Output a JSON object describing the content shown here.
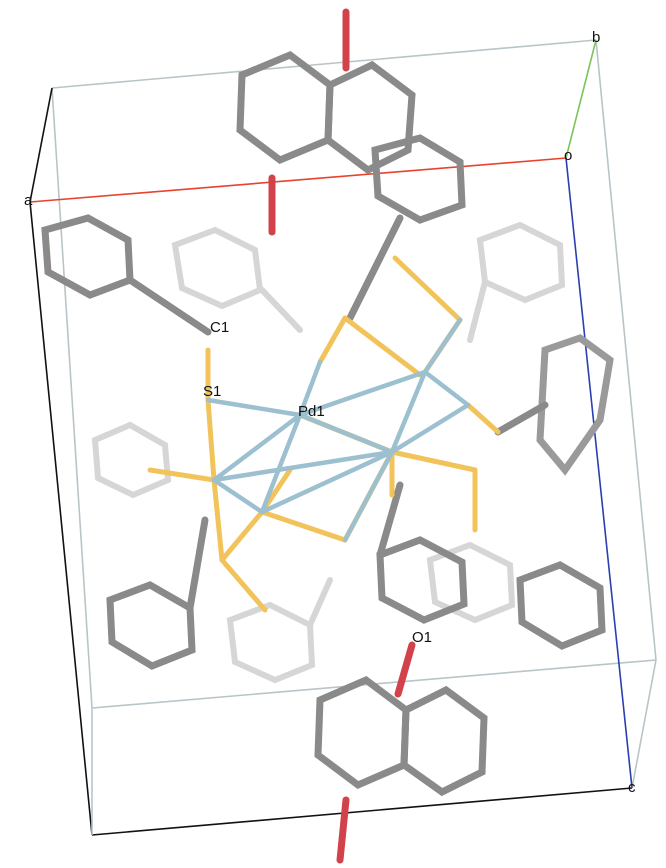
{
  "labels": {
    "a": "a",
    "b": "b",
    "c": "c",
    "o": "o",
    "c1": "C1",
    "s1": "S1",
    "pd1": "Pd1",
    "o1": "O1"
  },
  "colors": {
    "axis_a": "#e8432e",
    "axis_b": "#7cc35a",
    "axis_c": "#2a3fb0",
    "cell_edge_dark": "#111111",
    "cell_edge_light": "#b9c4c9",
    "carbon": "#8a8a8a",
    "carbon_light": "#cfcfcf",
    "hydrogen": "#e6e6e6",
    "sulfur": "#f2c35a",
    "palladium": "#6f9fb3",
    "pd_contact": "#9cc0cf",
    "oxygen": "#d2424a"
  }
}
